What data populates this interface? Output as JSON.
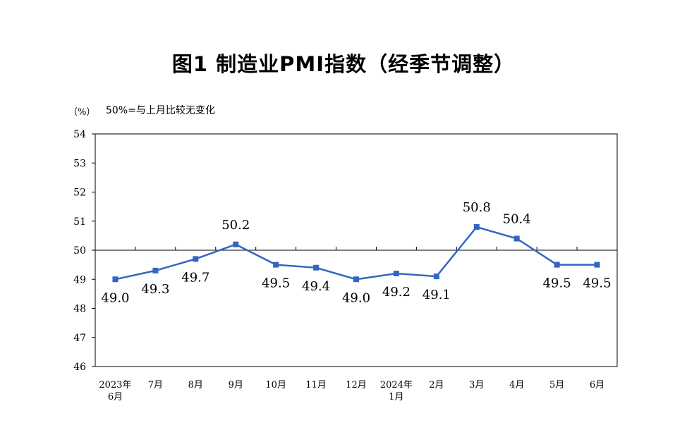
{
  "chart_data": {
    "type": "line",
    "title": "图1  制造业PMI指数（经季节调整）",
    "unit": "（%）",
    "reference_note": "50%=与上月比较无变化",
    "reference_line": 50,
    "ylim": [
      46,
      54
    ],
    "yticks": [
      46,
      47,
      48,
      49,
      50,
      51,
      52,
      53,
      54
    ],
    "categories": [
      [
        "2023年",
        "6月"
      ],
      [
        "7月"
      ],
      [
        "8月"
      ],
      [
        "9月"
      ],
      [
        "10月"
      ],
      [
        "11月"
      ],
      [
        "12月"
      ],
      [
        "2024年",
        "1月"
      ],
      [
        "2月"
      ],
      [
        "3月"
      ],
      [
        "4月"
      ],
      [
        "5月"
      ],
      [
        "6月"
      ]
    ],
    "series": [
      {
        "values": [
          49.0,
          49.3,
          49.7,
          50.2,
          49.5,
          49.4,
          49.0,
          49.2,
          49.1,
          50.8,
          50.4,
          49.5,
          49.5
        ],
        "labels": [
          "49.0",
          "49.3",
          "49.7",
          "50.2",
          "49.5",
          "49.4",
          "49.0",
          "49.2",
          "49.1",
          "50.8",
          "50.4",
          "49.5",
          "49.5"
        ],
        "label_positions": [
          "below",
          "below",
          "below",
          "above",
          "below",
          "below",
          "below",
          "below",
          "below",
          "above",
          "above",
          "below",
          "below"
        ],
        "color": "#3366c0"
      }
    ],
    "grid": false,
    "legend": "none"
  }
}
